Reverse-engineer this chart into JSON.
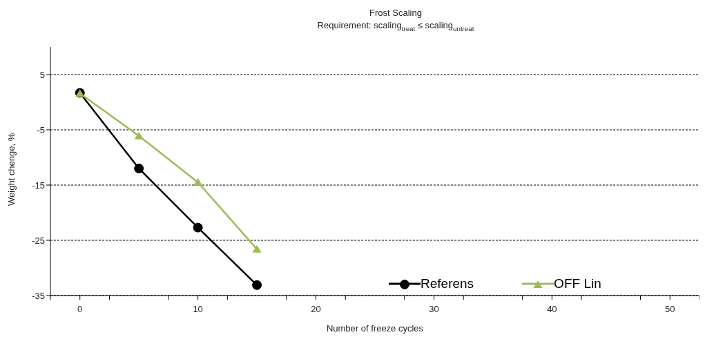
{
  "chart_data": {
    "type": "line",
    "title": "Frost Scaling",
    "subtitle": "Requirement:  scaling$_{treat}$ ≤ scaling$_{untreat}$",
    "xlabel": "Number of freeze cycles",
    "ylabel": "Weight chenge, %",
    "x": [
      0,
      5,
      10,
      15
    ],
    "series": [
      {
        "name": "Referens",
        "color": "#000000",
        "marker": "circle",
        "values": [
          1.7,
          -12.0,
          -22.7,
          -33.1
        ]
      },
      {
        "name": "OFF Lin",
        "color": "#9bbb59",
        "marker": "triangle",
        "values": [
          1.6,
          -6.1,
          -14.5,
          -26.6
        ]
      }
    ],
    "xlim": [
      -2.5,
      52.5
    ],
    "xticks": [
      {
        "value": -2.5,
        "label": null
      },
      0,
      {
        "value": 2.5,
        "label": null
      },
      {
        "value": 7.5,
        "label": null
      },
      10,
      {
        "value": 12.5,
        "label": null
      },
      {
        "value": 17.5,
        "label": null
      },
      20,
      {
        "value": 22.5,
        "label": null
      },
      {
        "value": 27.5,
        "label": null
      },
      30,
      {
        "value": 32.5,
        "label": null
      },
      {
        "value": 37.5,
        "label": null
      },
      40,
      {
        "value": 42.5,
        "label": null
      },
      {
        "value": 47.5,
        "label": null
      },
      50,
      {
        "value": 52.5,
        "label": null
      }
    ],
    "ylim": [
      -35,
      10
    ],
    "yticks": [
      -35,
      -25,
      -15,
      -5,
      5
    ],
    "grid": "y",
    "legend": "bottom right",
    "line_style": "solid"
  }
}
